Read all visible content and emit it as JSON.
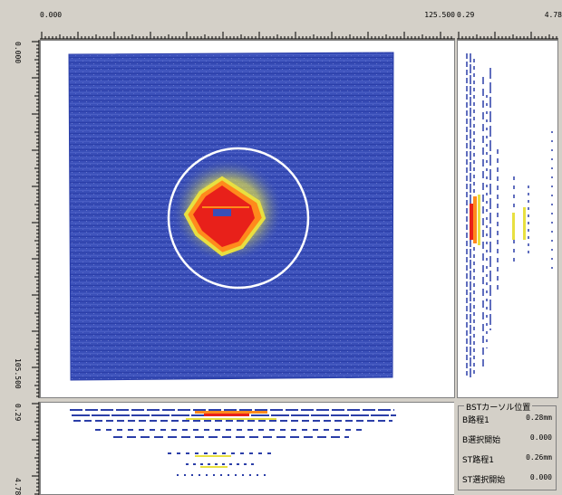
{
  "top_ruler": {
    "left_label": "0.000",
    "right_label": "125.500",
    "side_left_label": "0.29",
    "side_right_label": "4.78"
  },
  "left_ruler": {
    "top_label": "0.000",
    "bottom_label": "105.500",
    "lower_top_label": "0.29",
    "lower_bottom_label": "4.78"
  },
  "info_panel": {
    "group_title": "BSTカーソル位置",
    "rows": [
      {
        "label": "B路程1",
        "value": "0.28",
        "unit": "mm"
      },
      {
        "label": "B選択開始",
        "value": "0.000",
        "unit": ""
      },
      {
        "label": "ST路程1",
        "value": "0.26",
        "unit": "mm"
      },
      {
        "label": "ST選択開始",
        "value": "0.000",
        "unit": ""
      }
    ]
  },
  "colors": {
    "scan_blue": "#3a4fb8",
    "hot_red": "#e8201a",
    "hot_orange": "#ff8a1c",
    "hot_yellow": "#e8e040",
    "cursor_circle": "#ffffff"
  }
}
